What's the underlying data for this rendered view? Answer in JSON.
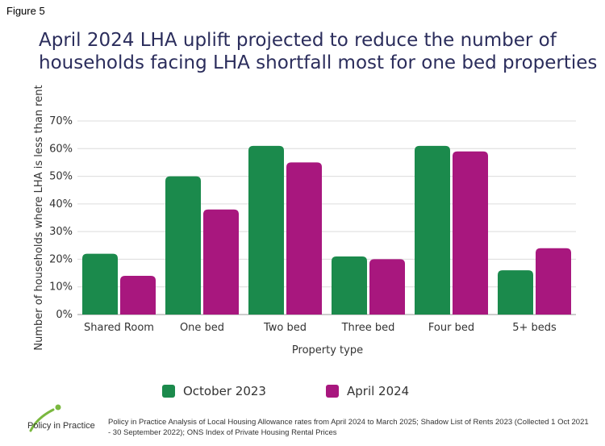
{
  "figure_label": "Figure 5",
  "title": "April 2024 LHA uplift projected to reduce the number of households facing LHA shortfall most for one bed properties",
  "chart_data": {
    "type": "bar",
    "categories": [
      "Shared Room",
      "One bed",
      "Two bed",
      "Three bed",
      "Four bed",
      "5+ beds"
    ],
    "series": [
      {
        "name": "October 2023",
        "color": "#1b8a4c",
        "values": [
          22,
          50,
          61,
          21,
          61,
          16
        ]
      },
      {
        "name": "April 2024",
        "color": "#a8177e",
        "values": [
          14,
          38,
          55,
          20,
          59,
          24
        ]
      }
    ],
    "title": "",
    "xlabel": "Property type",
    "ylabel": "Number of households where LHA is less than rent",
    "ylim": [
      0,
      70
    ],
    "yticks": [
      "0%",
      "10%",
      "20%",
      "30%",
      "40%",
      "50%",
      "60%",
      "70%"
    ],
    "grid": true,
    "legend_position": "bottom"
  },
  "footer": {
    "logo_text": "Policy in Practice",
    "source": "Policy in Practice Analysis of Local Housing Allowance rates from April 2024 to March 2025; Shadow List of Rents 2023 (Collected 1 Oct 2021 - 30 September 2022); ONS Index of Private Housing Rental Prices",
    "logo_colors": {
      "green": "#7ab83f",
      "purple": "#4b2b7a"
    }
  }
}
